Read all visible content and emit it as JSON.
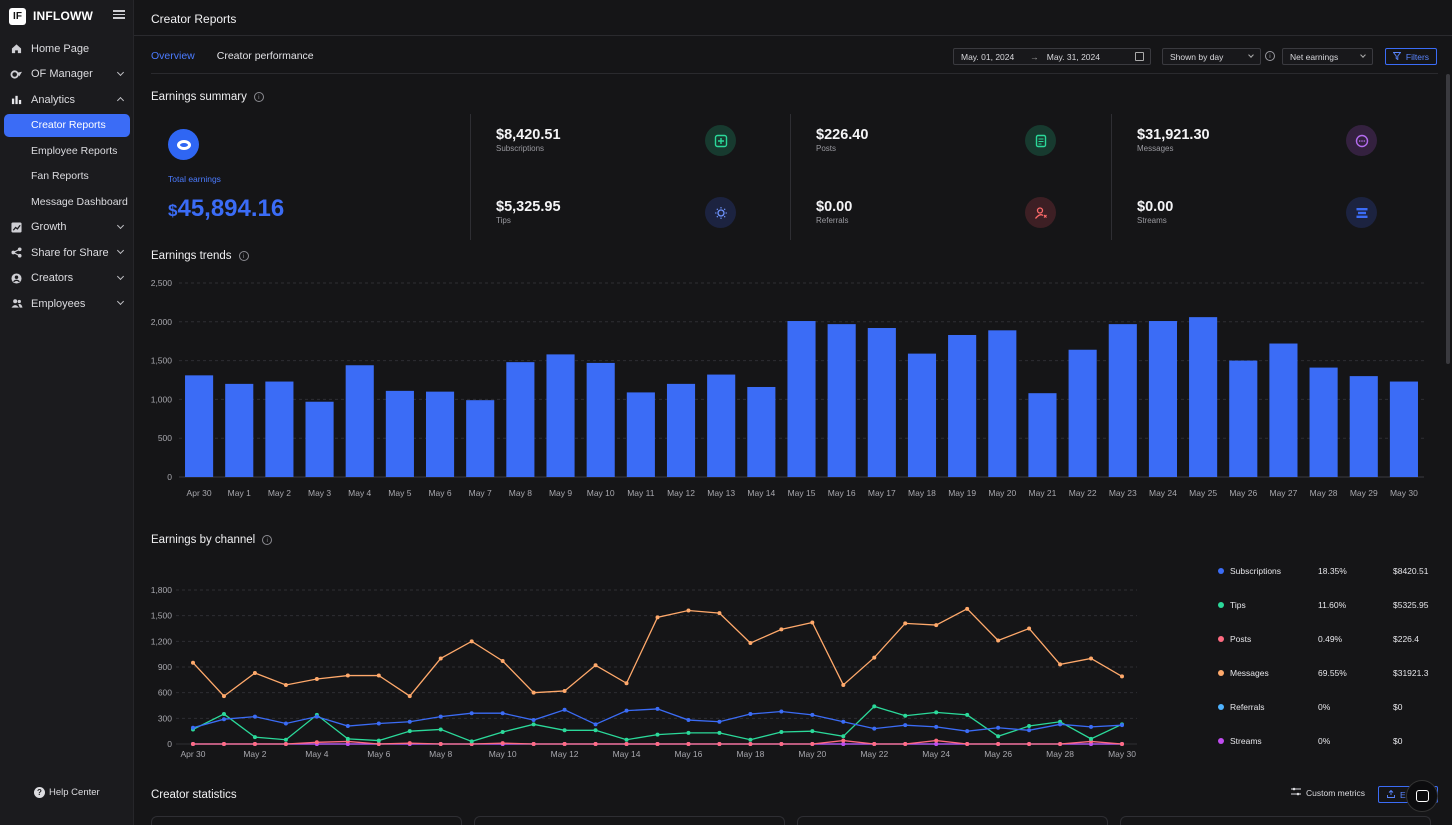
{
  "brand": {
    "name": "INFLOWW",
    "logo_text": "IF"
  },
  "sidebar": {
    "items": [
      {
        "label": "Home Page",
        "icon": "home-icon",
        "chevron": "none"
      },
      {
        "label": "OF Manager",
        "icon": "of-icon",
        "chevron": "down"
      },
      {
        "label": "Analytics",
        "icon": "bar-chart-icon",
        "chevron": "up"
      },
      {
        "label": "Growth",
        "icon": "growth-chart-icon",
        "chevron": "down"
      },
      {
        "label": "Share for Share",
        "icon": "share-icon",
        "chevron": "down"
      },
      {
        "label": "Creators",
        "icon": "user-circle-icon",
        "chevron": "down"
      },
      {
        "label": "Employees",
        "icon": "users-icon",
        "chevron": "down"
      }
    ],
    "analytics_sub": [
      "Creator Reports",
      "Employee Reports",
      "Fan Reports",
      "Message Dashboard"
    ],
    "active_sub": "Creator Reports",
    "help_label": "Help Center"
  },
  "header": {
    "title": "Creator Reports"
  },
  "tabs": [
    {
      "label": "Overview",
      "active": true
    },
    {
      "label": "Creator performance",
      "active": false
    }
  ],
  "controls": {
    "date_start": "May. 01, 2024",
    "date_end": "May. 31, 2024",
    "date_arrow": "→",
    "shown_by": "Shown by day",
    "metric": "Net earnings",
    "filters_label": "Filters"
  },
  "summary": {
    "title": "Earnings summary",
    "total_label": "Total earnings",
    "total_currency": "$",
    "total_value": "45,894.16",
    "metrics": [
      {
        "value": "$8,420.51",
        "label": "Subscriptions",
        "icon": "subscription-icon",
        "color": "#2bd99a"
      },
      {
        "value": "$226.40",
        "label": "Posts",
        "icon": "post-icon",
        "color": "#2bd99a"
      },
      {
        "value": "$31,921.30",
        "label": "Messages",
        "icon": "message-icon",
        "color": "#b46cf0"
      },
      {
        "value": "$5,325.95",
        "label": "Tips",
        "icon": "tip-bulb-icon",
        "color": "#4b7bff"
      },
      {
        "value": "$0.00",
        "label": "Referrals",
        "icon": "referral-icon",
        "color": "#ff6b6b"
      },
      {
        "value": "$0.00",
        "label": "Streams",
        "icon": "stream-icon",
        "color": "#3b6cf6"
      }
    ]
  },
  "trends": {
    "title": "Earnings trends"
  },
  "channel": {
    "title": "Earnings by channel"
  },
  "chart_data": [
    {
      "type": "bar",
      "title": "Earnings trends",
      "categories": [
        "Apr 30",
        "May 1",
        "May 2",
        "May 3",
        "May 4",
        "May 5",
        "May 6",
        "May 7",
        "May 8",
        "May 9",
        "May 10",
        "May 11",
        "May 12",
        "May 13",
        "May 14",
        "May 15",
        "May 16",
        "May 17",
        "May 18",
        "May 19",
        "May 20",
        "May 21",
        "May 22",
        "May 23",
        "May 24",
        "May 25",
        "May 26",
        "May 27",
        "May 28",
        "May 29",
        "May 30"
      ],
      "values": [
        1310,
        1200,
        1230,
        970,
        1440,
        1110,
        1100,
        990,
        1480,
        1580,
        1470,
        1090,
        1200,
        1320,
        1160,
        2010,
        1970,
        1920,
        1590,
        1830,
        1890,
        1080,
        1640,
        1970,
        2010,
        2060,
        1500,
        1720,
        1410,
        1300,
        1230
      ],
      "ylim": [
        0,
        2500
      ],
      "yticks": [
        "0",
        "500",
        "1,000",
        "1,500",
        "2,000",
        "2,500"
      ],
      "color": "#3b6cf6",
      "grid": true
    },
    {
      "type": "line",
      "title": "Earnings by channel",
      "x": [
        "Apr 30",
        "May 1",
        "May 2",
        "May 3",
        "May 4",
        "May 5",
        "May 6",
        "May 7",
        "May 8",
        "May 9",
        "May 10",
        "May 11",
        "May 12",
        "May 13",
        "May 14",
        "May 15",
        "May 16",
        "May 17",
        "May 18",
        "May 19",
        "May 20",
        "May 21",
        "May 22",
        "May 23",
        "May 24",
        "May 25",
        "May 26",
        "May 27",
        "May 28",
        "May 29",
        "May 30"
      ],
      "xticks": [
        "Apr 30",
        "May 2",
        "May 4",
        "May 6",
        "May 8",
        "May 10",
        "May 12",
        "May 14",
        "May 16",
        "May 18",
        "May 20",
        "May 22",
        "May 24",
        "May 26",
        "May 28",
        "May 30"
      ],
      "ylim": [
        0,
        1800
      ],
      "yticks": [
        "0",
        "300",
        "600",
        "900",
        "1,200",
        "1,500",
        "1,800"
      ],
      "grid": true,
      "series": [
        {
          "name": "Subscriptions",
          "color": "#3b6cf6",
          "pct": "18.35%",
          "amount": "$8420.51",
          "values": [
            190,
            290,
            320,
            240,
            320,
            210,
            240,
            260,
            320,
            360,
            360,
            280,
            400,
            230,
            390,
            410,
            280,
            260,
            350,
            380,
            340,
            260,
            180,
            220,
            200,
            150,
            190,
            160,
            230,
            200,
            220
          ]
        },
        {
          "name": "Tips",
          "color": "#2bd99a",
          "pct": "11.60%",
          "amount": "$5325.95",
          "values": [
            170,
            350,
            80,
            50,
            340,
            60,
            40,
            150,
            170,
            30,
            140,
            230,
            160,
            160,
            50,
            110,
            130,
            130,
            50,
            140,
            150,
            90,
            440,
            330,
            370,
            340,
            90,
            210,
            260,
            60,
            230
          ]
        },
        {
          "name": "Posts",
          "color": "#ff6b81",
          "pct": "0.49%",
          "amount": "$226.4",
          "values": [
            0,
            0,
            0,
            0,
            20,
            30,
            0,
            10,
            0,
            0,
            10,
            0,
            0,
            0,
            0,
            0,
            0,
            0,
            0,
            0,
            0,
            40,
            0,
            0,
            40,
            0,
            0,
            0,
            0,
            30,
            0
          ]
        },
        {
          "name": "Messages",
          "color": "#ffa96b",
          "pct": "69.55%",
          "amount": "$31921.3",
          "values": [
            950,
            560,
            830,
            690,
            760,
            800,
            800,
            560,
            1000,
            1200,
            970,
            600,
            620,
            920,
            710,
            1480,
            1560,
            1530,
            1180,
            1340,
            1420,
            690,
            1010,
            1410,
            1390,
            1580,
            1210,
            1350,
            930,
            1000,
            790
          ]
        },
        {
          "name": "Referrals",
          "color": "#4fb3ff",
          "pct": "0%",
          "amount": "$0",
          "values": [
            0,
            0,
            0,
            0,
            0,
            0,
            0,
            0,
            0,
            0,
            0,
            0,
            0,
            0,
            0,
            0,
            0,
            0,
            0,
            0,
            0,
            0,
            0,
            0,
            0,
            0,
            0,
            0,
            0,
            0,
            0
          ]
        },
        {
          "name": "Streams",
          "color": "#c04cf0",
          "pct": "0%",
          "amount": "$0",
          "values": [
            0,
            0,
            0,
            0,
            0,
            0,
            0,
            0,
            0,
            0,
            0,
            0,
            0,
            0,
            0,
            0,
            0,
            0,
            0,
            0,
            0,
            0,
            0,
            0,
            0,
            0,
            0,
            0,
            0,
            0,
            0
          ]
        }
      ]
    }
  ],
  "stats": {
    "title": "Creator statistics",
    "custom_metrics_label": "Custom metrics",
    "export_label": "E"
  }
}
